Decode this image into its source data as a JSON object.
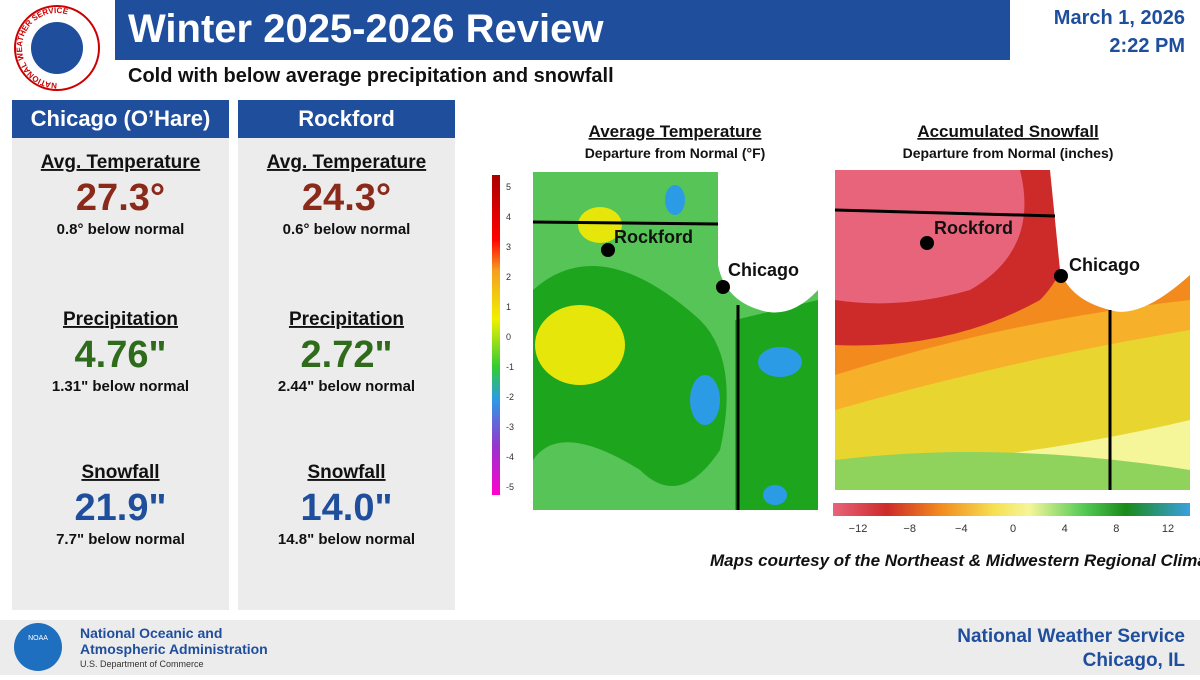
{
  "header": {
    "title": "Winter 2025-2026 Review",
    "subtitle": "Cold with below average precipitation and snowfall",
    "date": "March 1, 2026",
    "time": "2:22 PM",
    "logo_text": "NATIONAL WEATHER SERVICE"
  },
  "stations": [
    {
      "name": "Chicago (O’Hare)",
      "stats": [
        {
          "label": "Avg. Temperature",
          "value": "27.3°",
          "note": "0.8° below normal"
        },
        {
          "label": "Precipitation",
          "value": "4.76\"",
          "note": "1.31\" below normal"
        },
        {
          "label": "Snowfall",
          "value": "21.9\"",
          "note": "7.7\" below normal"
        }
      ]
    },
    {
      "name": "Rockford",
      "stats": [
        {
          "label": "Avg. Temperature",
          "value": "24.3°",
          "note": "0.6° below normal"
        },
        {
          "label": "Precipitation",
          "value": "2.72\"",
          "note": "2.44\" below normal"
        },
        {
          "label": "Snowfall",
          "value": "14.0\"",
          "note": "14.8\" below normal"
        }
      ]
    }
  ],
  "maps": [
    {
      "title": "Average Temperature",
      "subtitle": "Departure from Normal (°F)",
      "scale": [
        "5",
        "4",
        "3",
        "2",
        "1",
        "0",
        "-1",
        "-2",
        "-3",
        "-4",
        "-5"
      ],
      "places": [
        "Rockford",
        "Chicago"
      ]
    },
    {
      "title": "Accumulated Snowfall",
      "subtitle": "Departure from Normal (inches)",
      "scale": [
        "−12",
        "−8",
        "−4",
        "0",
        "4",
        "8",
        "12"
      ],
      "places": [
        "Rockford",
        "Chicago"
      ]
    }
  ],
  "credit": "Maps courtesy of the Northeast & Midwestern Regional Climate Centers",
  "footer": {
    "noaa_logo": "NOAA",
    "noaa_line1": "National Oceanic and",
    "noaa_line2": "Atmospheric Administration",
    "noaa_line3": "U.S. Department of Commerce",
    "nws": "National Weather Service",
    "office": "Chicago, IL"
  }
}
